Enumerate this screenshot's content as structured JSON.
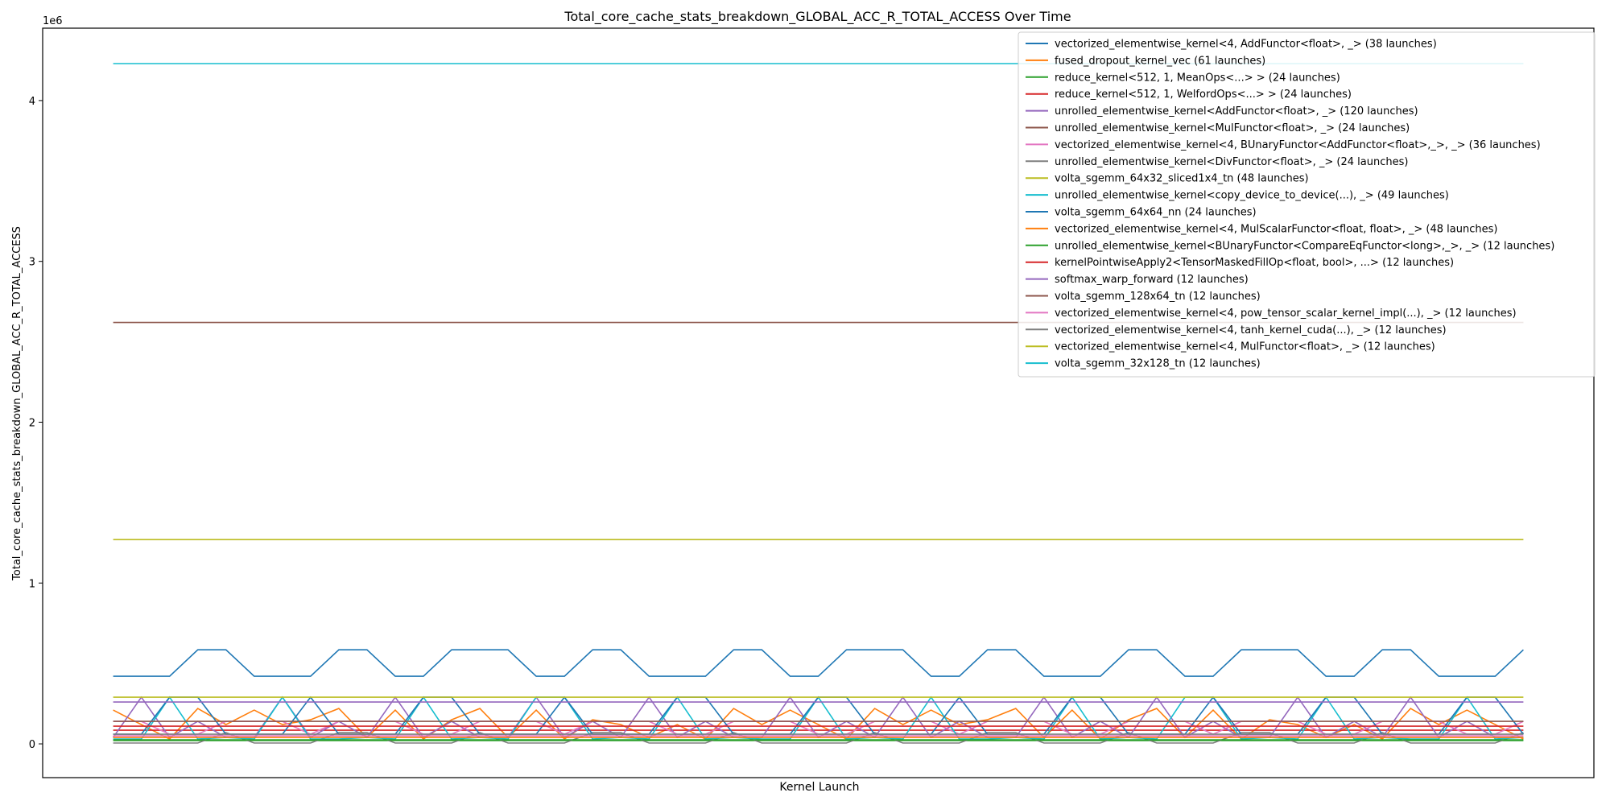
{
  "chart_data": {
    "type": "line",
    "title": "Total_core_cache_stats_breakdown_GLOBAL_ACC_R_TOTAL_ACCESS Over Time",
    "xlabel": "Kernel Launch",
    "ylabel": "Total_core_cache_stats_breakdown_GLOBAL_ACC_R_TOTAL_ACCESS",
    "y_offset_label": "1e6",
    "xlim": [
      -2.5,
      52.5
    ],
    "ylim": [
      -210000,
      4450000
    ],
    "yticks": [
      0,
      1000000,
      2000000,
      3000000,
      4000000
    ],
    "yticklabels": [
      "0",
      "1",
      "2",
      "3",
      "4"
    ],
    "grid": false,
    "legend_position": "top-right",
    "series": [
      {
        "name": "vectorized_elementwise_kernel<4, AddFunctor<float>, _> (38 launches)",
        "color": "#1f77b4",
        "pattern": [
          420000,
          585000
        ],
        "period": 4.67
      },
      {
        "name": "fused_dropout_kernel_vec (61 launches)",
        "color": "#ff7f0e",
        "pattern": [
          210000,
          120000,
          30000,
          150000,
          220000,
          120000,
          40000
        ],
        "period": 4.8
      },
      {
        "name": "reduce_kernel<512, 1, MeanOps<...> > (24 launches)",
        "color": "#2ca02c",
        "pattern": [
          20000
        ],
        "period": 1
      },
      {
        "name": "reduce_kernel<512, 1, WelfordOps<...> > (24 launches)",
        "color": "#d62728",
        "pattern": [
          85000
        ],
        "period": 1
      },
      {
        "name": "unrolled_elementwise_kernel<AddFunctor<float>, _> (120 launches)",
        "color": "#9467bd",
        "pattern": [
          40000,
          290000,
          40000,
          140000,
          40000
        ],
        "period": 4.5
      },
      {
        "name": "unrolled_elementwise_kernel<MulFunctor<float>, _> (24 launches)",
        "color": "#8c564b",
        "pattern": [
          2620000
        ],
        "period": 1
      },
      {
        "name": "vectorized_elementwise_kernel<4, BUnaryFunctor<AddFunctor<float>,_>, _> (36 launches)",
        "color": "#e377c2",
        "pattern": [
          140000,
          60000,
          140000
        ],
        "period": 4.6
      },
      {
        "name": "unrolled_elementwise_kernel<DivFunctor<float>, _> (24 launches)",
        "color": "#7f7f7f",
        "pattern": [
          5000,
          5000,
          70000
        ],
        "period": 4.6
      },
      {
        "name": "volta_sgemm_64x32_sliced1x4_tn (48 launches)",
        "color": "#bcbd22",
        "pattern": [
          1270000
        ],
        "period": 1
      },
      {
        "name": "unrolled_elementwise_kernel<copy_device_to_device(...), _> (49 launches)",
        "color": "#17becf",
        "pattern": [
          30000,
          290000,
          30000,
          40000
        ],
        "period": 4.6
      },
      {
        "name": "volta_sgemm_64x64_nn (24 launches)",
        "color": "#1f77b4",
        "pattern": [
          60000,
          290000,
          60000
        ],
        "period": 4.6
      },
      {
        "name": "vectorized_elementwise_kernel<4, MulScalarFunctor<float, float>, _> (48 launches)",
        "color": "#ff7f0e",
        "pattern": [
          40000
        ],
        "period": 1
      },
      {
        "name": "unrolled_elementwise_kernel<BUnaryFunctor<CompareEqFunctor<long>,_>, _> (12 launches)",
        "color": "#2ca02c",
        "pattern": [
          25000
        ],
        "period": 1
      },
      {
        "name": "kernelPointwiseApply2<TensorMaskedFillOp<float, bool>, ...> (12 launches)",
        "color": "#d62728",
        "pattern": [
          110000
        ],
        "period": 1
      },
      {
        "name": "softmax_warp_forward (12 launches)",
        "color": "#9467bd",
        "pattern": [
          260000
        ],
        "period": 1
      },
      {
        "name": "volta_sgemm_128x64_tn (12 launches)",
        "color": "#8c564b",
        "pattern": [
          140000
        ],
        "period": 1
      },
      {
        "name": "vectorized_elementwise_kernel<4, pow_tensor_scalar_kernel_impl(...), _> (12 launches)",
        "color": "#e377c2",
        "pattern": [
          50000
        ],
        "period": 1
      },
      {
        "name": "vectorized_elementwise_kernel<4, tanh_kernel_cuda(...), _> (12 launches)",
        "color": "#7f7f7f",
        "pattern": [
          60000
        ],
        "period": 1
      },
      {
        "name": "vectorized_elementwise_kernel<4, MulFunctor<float>, _> (12 launches)",
        "color": "#bcbd22",
        "pattern": [
          290000
        ],
        "period": 1
      },
      {
        "name": "volta_sgemm_32x128_tn (12 launches)",
        "color": "#17becf",
        "pattern": [
          4230000
        ],
        "period": 1
      }
    ]
  }
}
